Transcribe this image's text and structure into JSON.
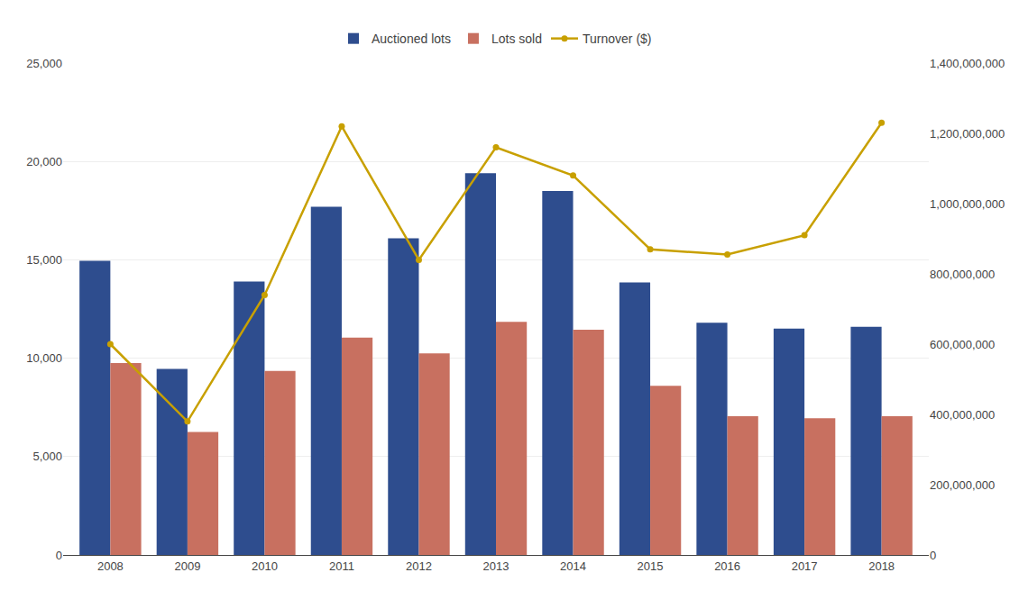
{
  "chart_data": {
    "type": "bar",
    "categories": [
      "2008",
      "2009",
      "2010",
      "2011",
      "2012",
      "2013",
      "2014",
      "2015",
      "2016",
      "2017",
      "2018"
    ],
    "series": [
      {
        "name": "Auctioned lots",
        "type": "bar",
        "color": "#2e4d8e",
        "values": [
          14950,
          9450,
          13900,
          17700,
          16100,
          19400,
          18500,
          13850,
          11800,
          11500,
          11600
        ]
      },
      {
        "name": "Lots sold",
        "type": "bar",
        "color": "#c87060",
        "values": [
          9750,
          6250,
          9350,
          11050,
          10250,
          11850,
          11450,
          8600,
          7050,
          6950,
          7050
        ]
      },
      {
        "name": "Turnover ($)",
        "type": "line",
        "axis": "y2",
        "color": "#c8a000",
        "marker": "circle",
        "line_style": "solid",
        "values": [
          600000000,
          380000000,
          740000000,
          1220000000,
          840000000,
          1160000000,
          1080000000,
          870000000,
          855000000,
          910000000,
          1230000000
        ]
      }
    ],
    "ylim": [
      0,
      25000
    ],
    "yticks": [
      0,
      {
        "value": 5000,
        "label": "5,000"
      },
      {
        "value": 10000,
        "label": "10,000"
      },
      {
        "value": 15000,
        "label": "15,000"
      },
      {
        "value": 20000,
        "label": "20,000"
      },
      {
        "value": 25000,
        "label": "25,000"
      }
    ],
    "y2lim": [
      0,
      1400000000
    ],
    "y2ticks": [
      0,
      {
        "value": 200000000,
        "label": "200,000,000"
      },
      {
        "value": 400000000,
        "label": "400,000,000"
      },
      {
        "value": 600000000,
        "label": "600,000,000"
      },
      {
        "value": 800000000,
        "label": "800,000,000"
      },
      {
        "value": 1000000000,
        "label": "1,000,000,000"
      },
      {
        "value": 1200000000,
        "label": "1,200,000,000"
      },
      {
        "value": 1400000000,
        "label": "1,400,000,000"
      }
    ],
    "grid": true,
    "legend": "upper center"
  }
}
